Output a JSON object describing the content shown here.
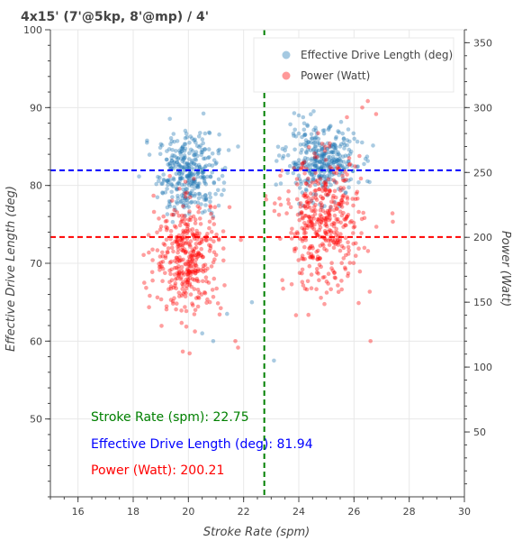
{
  "chart_data": {
    "type": "scatter",
    "title": "4x15' (7'@5kp, 8'@mp) / 4'",
    "xlabel": "Stroke Rate (spm)",
    "ylabel": "Effective Drive Length (deg)",
    "y2label": "Power (Watt)",
    "xlim": [
      15,
      30
    ],
    "ylim": [
      40,
      100
    ],
    "y2lim": [
      0,
      360
    ],
    "x_ticks": [
      "16",
      "18",
      "20",
      "22",
      "24",
      "26",
      "28",
      "30"
    ],
    "y_ticks": [
      "50",
      "60",
      "70",
      "80",
      "90",
      "100"
    ],
    "y2_ticks": [
      "50",
      "100",
      "150",
      "200",
      "250",
      "300",
      "350"
    ],
    "grid": true,
    "legend_position": "top-right",
    "legend": [
      {
        "label": "Effective Drive Length (deg)",
        "color": "#1f77b4"
      },
      {
        "label": "Power (Watt)",
        "color": "#ff0000"
      }
    ],
    "series": [
      {
        "name": "Effective Drive Length (deg)",
        "axis": "left",
        "color": "#1f77b4",
        "clusters": [
          {
            "x_center": 20.0,
            "x_spread": 0.55,
            "y_center": 81.5,
            "y_spread": 2.6,
            "count": 340
          },
          {
            "x_center": 24.8,
            "x_spread": 0.65,
            "y_center": 83.0,
            "y_spread": 2.2,
            "count": 360
          }
        ],
        "points": [
          [
            18.5,
            85.5
          ],
          [
            21.8,
            85.0
          ],
          [
            24.0,
            89.0
          ],
          [
            23.1,
            57.5
          ],
          [
            20.9,
            60.0
          ],
          [
            22.3,
            65.0
          ],
          [
            21.4,
            63.5
          ],
          [
            20.5,
            61.0
          ],
          [
            23.5,
            84.5
          ]
        ]
      },
      {
        "name": "Power (Watt)",
        "axis": "right",
        "color": "#ff0000",
        "clusters": [
          {
            "x_center": 20.0,
            "x_spread": 0.6,
            "y_center": 185,
            "y_spread": 22,
            "count": 380
          },
          {
            "x_center": 24.9,
            "x_spread": 0.7,
            "y_center": 210,
            "y_spread": 25,
            "count": 420
          }
        ],
        "points": [
          [
            18.6,
            155.0
          ],
          [
            18.4,
            165.0
          ],
          [
            21.9,
            198.0
          ],
          [
            21.7,
            120.0
          ],
          [
            21.8,
            115.0
          ],
          [
            26.5,
            305.0
          ],
          [
            26.8,
            295.0
          ],
          [
            26.3,
            300.0
          ],
          [
            23.9,
            140.0
          ],
          [
            26.6,
            120.0
          ],
          [
            23.3,
            230.0
          ]
        ]
      }
    ],
    "reference_lines": [
      {
        "orientation": "vertical",
        "axis": "x",
        "value": 22.75,
        "color": "#008000"
      },
      {
        "orientation": "horizontal",
        "axis": "left",
        "value": 81.94,
        "color": "#0000ff"
      },
      {
        "orientation": "horizontal",
        "axis": "right",
        "value": 200.21,
        "color": "#ff0000"
      }
    ],
    "annotations": [
      {
        "text": "Stroke Rate (spm): 22.75",
        "color": "#008000"
      },
      {
        "text": "Effective Drive Length (deg): 81.94",
        "color": "#0000ff"
      },
      {
        "text": "Power (Watt): 200.21",
        "color": "#ff0000"
      }
    ]
  }
}
